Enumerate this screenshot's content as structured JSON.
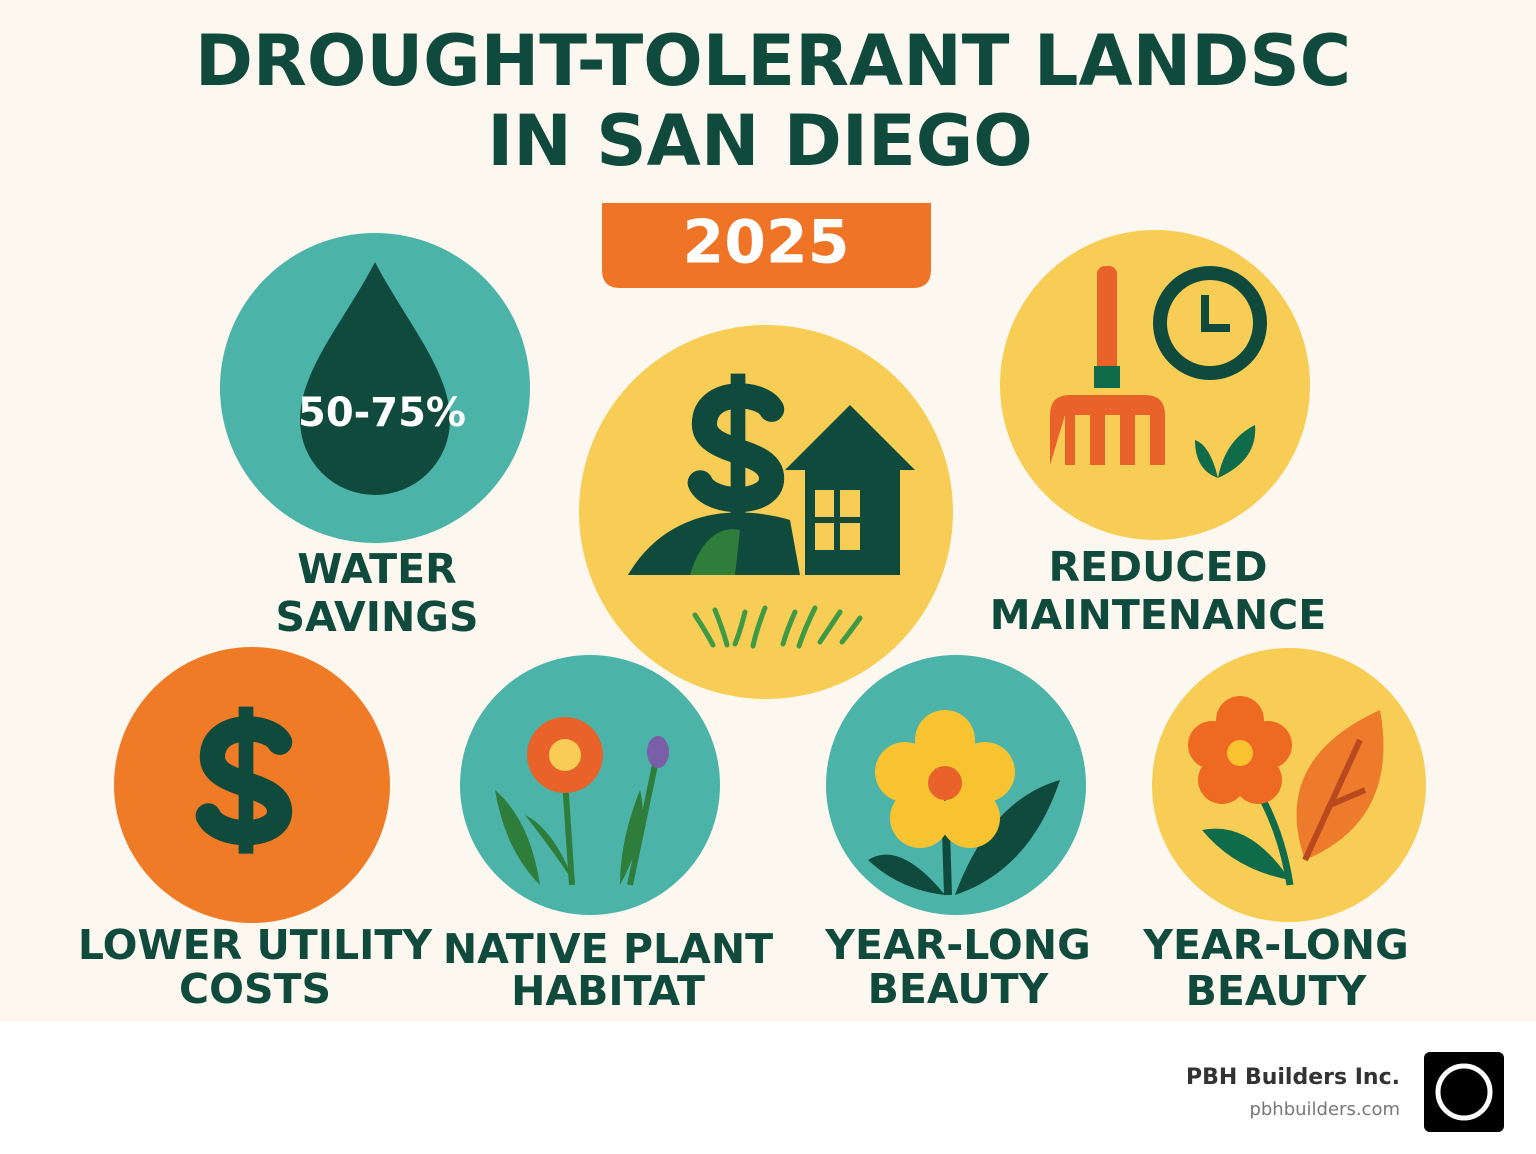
{
  "header": {
    "title_lines": [
      "DROUGHT-TOLERANT LANDSC",
      "IN SAN DIEGO"
    ],
    "badge": "2025"
  },
  "benefits": [
    {
      "label_lines": [
        "WATER",
        "SAVINGS"
      ],
      "figure": "50-75%"
    },
    {
      "label_lines": [
        "REDUCED",
        "MAINTENANCE"
      ]
    },
    {
      "label_lines": [
        "LOWER UTILITY",
        "COSTS"
      ]
    },
    {
      "label_lines": [
        "NATIVE PLANT",
        "HABITAT"
      ]
    },
    {
      "label_lines": [
        "YEAR-LONG",
        "BEAUTY"
      ]
    },
    {
      "label_lines": [
        "YEAR-LONG",
        "BEAUTY"
      ]
    }
  ],
  "footer": {
    "company": "PBH Builders Inc.",
    "website": "pbhbuilders.com"
  }
}
